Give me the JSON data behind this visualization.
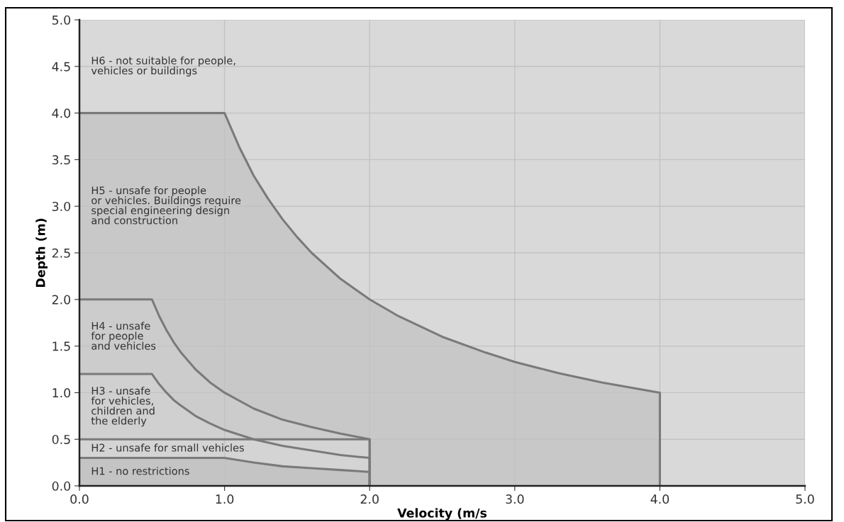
{
  "chart_data": {
    "type": "area",
    "xlabel": "Velocity (m/s",
    "ylabel": "Depth (m)",
    "xlim": [
      0,
      5
    ],
    "ylim": [
      0,
      5
    ],
    "xticks": [
      {
        "value": 0,
        "label": "0.0"
      },
      {
        "value": 1,
        "label": "1.0"
      },
      {
        "value": 2,
        "label": "2.0"
      },
      {
        "value": 3,
        "label": "3.0"
      },
      {
        "value": 4,
        "label": "4.0"
      },
      {
        "value": 5,
        "label": "5.0"
      }
    ],
    "yticks": [
      {
        "value": 0,
        "label": "0.0"
      },
      {
        "value": 0.5,
        "label": "0.5"
      },
      {
        "value": 1,
        "label": "1.0"
      },
      {
        "value": 1.5,
        "label": "1.5"
      },
      {
        "value": 2,
        "label": "2.0"
      },
      {
        "value": 2.5,
        "label": "2.5"
      },
      {
        "value": 3,
        "label": "3.0"
      },
      {
        "value": 3.5,
        "label": "3.5"
      },
      {
        "value": 4,
        "label": "4.0"
      },
      {
        "value": 4.5,
        "label": "4.5"
      },
      {
        "value": 5,
        "label": "5.0"
      }
    ],
    "grid": true,
    "legend": false,
    "marker": "none",
    "line_style": "solid",
    "series": [
      {
        "color": "#c8c8c8",
        "x": [
          0,
          1,
          1.1,
          1.2,
          1.3,
          1.4,
          1.5,
          1.6,
          1.8,
          2,
          2.2,
          2.5,
          2.8,
          3,
          3.3,
          3.6,
          4,
          4
        ],
        "values": [
          4,
          4,
          3.64,
          3.33,
          3.08,
          2.86,
          2.67,
          2.5,
          2.22,
          2,
          1.82,
          1.6,
          1.43,
          1.33,
          1.21,
          1.11,
          1,
          0
        ]
      },
      {
        "color": "#cccccc",
        "x": [
          0,
          0.5,
          0.55,
          0.6,
          0.65,
          0.7,
          0.8,
          0.9,
          1,
          1.2,
          1.4,
          1.6,
          1.8,
          2,
          2
        ],
        "values": [
          2,
          2,
          1.82,
          1.67,
          1.54,
          1.43,
          1.25,
          1.11,
          1,
          0.83,
          0.71,
          0.63,
          0.56,
          0.5,
          0
        ]
      },
      {
        "color": "#d0d0d0",
        "x": [
          0,
          0.5,
          0.55,
          0.6,
          0.65,
          0.7,
          0.8,
          0.9,
          1,
          1.2,
          1.4,
          1.6,
          1.8,
          2,
          2
        ],
        "values": [
          1.2,
          1.2,
          1.09,
          1.0,
          0.92,
          0.86,
          0.75,
          0.67,
          0.6,
          0.5,
          0.43,
          0.38,
          0.33,
          0.3,
          0
        ]
      },
      {
        "color": "#d4d4d4",
        "x": [
          0,
          2,
          2
        ],
        "values": [
          0.5,
          0.5,
          0
        ]
      },
      {
        "color": "#c4c4c4",
        "x": [
          0,
          1,
          1.2,
          1.4,
          1.6,
          1.8,
          2,
          2
        ],
        "values": [
          0.3,
          0.3,
          0.25,
          0.21,
          0.19,
          0.17,
          0.15,
          0
        ]
      }
    ],
    "annotations": [
      "H6 - not suitable for people,\nvehicles or buildings",
      "H5 - unsafe for people\nor vehicles. Buildings require\nspecial engineering design\nand construction",
      "H4 - unsafe\nfor people\nand vehicles",
      "H3 - unsafe\nfor vehicles,\nchildren and\nthe elderly",
      "H2 - unsafe for small vehicles",
      "H1 - no restrictions"
    ]
  }
}
